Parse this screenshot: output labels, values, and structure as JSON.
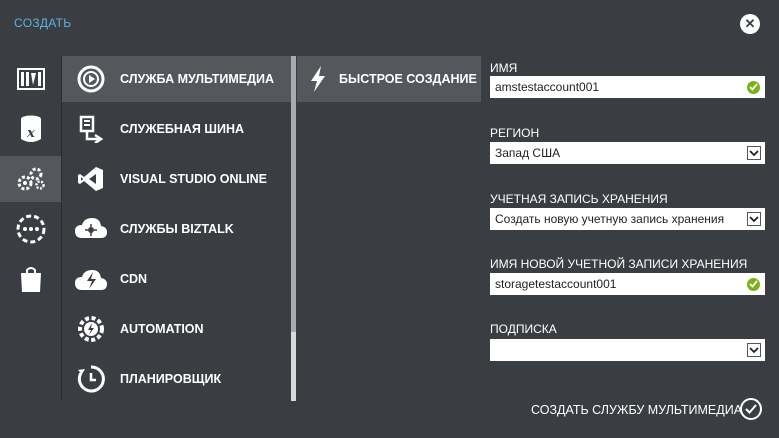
{
  "dialog": {
    "title": "СОЗДАТЬ"
  },
  "categories": [
    {
      "icon": "film-strip-icon",
      "active": false
    },
    {
      "icon": "database-x-icon",
      "active": false
    },
    {
      "icon": "gears-icon",
      "active": true
    },
    {
      "icon": "more-dots-icon",
      "active": false
    },
    {
      "icon": "shopping-bag-icon",
      "active": false
    }
  ],
  "services": [
    {
      "label": "СЛУЖБА МУЛЬТИМЕДИА",
      "icon": "media-services-icon",
      "active": true
    },
    {
      "label": "СЛУЖЕБНАЯ ШИНА",
      "icon": "service-bus-icon",
      "active": false
    },
    {
      "label": "VISUAL STUDIO ONLINE",
      "icon": "visual-studio-icon",
      "active": false
    },
    {
      "label": "СЛУЖБЫ BIZTALK",
      "icon": "biztalk-cloud-icon",
      "active": false
    },
    {
      "label": "CDN",
      "icon": "cdn-cloud-icon",
      "active": false
    },
    {
      "label": "AUTOMATION",
      "icon": "automation-gear-icon",
      "active": false
    },
    {
      "label": "ПЛАНИРОВЩИК",
      "icon": "scheduler-clock-icon",
      "active": false
    }
  ],
  "modes": [
    {
      "label": "БЫСТРОЕ СОЗДАНИЕ",
      "icon": "lightning-icon",
      "active": true
    }
  ],
  "form": {
    "name": {
      "label": "ИМЯ",
      "value": "amstestaccount001"
    },
    "region": {
      "label": "РЕГИОН",
      "value": "Запад США"
    },
    "storage": {
      "label": "УЧЕТНАЯ ЗАПИСЬ ХРАНЕНИЯ",
      "value": "Создать новую учетную запись хранения"
    },
    "storage_name": {
      "label": "ИМЯ НОВОЙ УЧЕТНОЙ ЗАПИСИ ХРАНЕНИЯ",
      "value": "storagetestaccount001"
    },
    "subscription": {
      "label": "ПОДПИСКА",
      "value": ""
    }
  },
  "footer": {
    "submit_label": "СОЗДАТЬ СЛУЖБУ МУЛЬТИМЕДИА"
  },
  "colors": {
    "background": "#3a3d42",
    "selected": "#54575c",
    "title_accent": "#5db2e0",
    "valid_green": "#7ab317"
  }
}
